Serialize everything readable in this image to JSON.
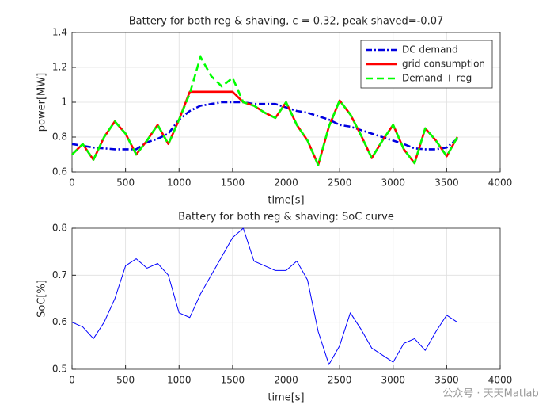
{
  "chart_data": [
    {
      "type": "line",
      "title": "Battery for both reg & shaving, c = 0.32, peak shaved=-0.07",
      "xlabel": "time[s]",
      "ylabel": "power[MW]",
      "x": [
        0,
        100,
        200,
        300,
        400,
        500,
        600,
        700,
        800,
        900,
        1000,
        1100,
        1200,
        1300,
        1400,
        1500,
        1600,
        1700,
        1800,
        1900,
        2000,
        2100,
        2200,
        2300,
        2400,
        2500,
        2600,
        2700,
        2800,
        2900,
        3000,
        3100,
        3200,
        3300,
        3400,
        3500,
        3600
      ],
      "series": [
        {
          "name": "DC demand",
          "color": "#0000e0",
          "dash": "dashdot",
          "values": [
            0.76,
            0.75,
            0.74,
            0.735,
            0.73,
            0.73,
            0.73,
            0.77,
            0.79,
            0.82,
            0.9,
            0.95,
            0.98,
            0.99,
            1.0,
            1.0,
            1.0,
            0.99,
            0.99,
            0.99,
            0.97,
            0.95,
            0.94,
            0.92,
            0.9,
            0.87,
            0.86,
            0.84,
            0.82,
            0.8,
            0.78,
            0.76,
            0.735,
            0.73,
            0.73,
            0.74,
            0.79
          ]
        },
        {
          "name": "grid consumption",
          "color": "#ff0000",
          "dash": "solid",
          "values": [
            0.7,
            0.76,
            0.67,
            0.8,
            0.89,
            0.82,
            0.7,
            0.78,
            0.87,
            0.76,
            0.9,
            1.06,
            1.06,
            1.06,
            1.06,
            1.06,
            1.0,
            0.98,
            0.94,
            0.91,
            1.0,
            0.87,
            0.78,
            0.64,
            0.86,
            1.01,
            0.93,
            0.81,
            0.68,
            0.78,
            0.87,
            0.73,
            0.65,
            0.85,
            0.78,
            0.69,
            0.8
          ]
        },
        {
          "name": "Demand + reg",
          "color": "#00ff00",
          "dash": "dashed",
          "values": [
            0.7,
            0.76,
            0.67,
            0.8,
            0.89,
            0.82,
            0.7,
            0.78,
            0.87,
            0.76,
            0.9,
            1.05,
            1.26,
            1.15,
            1.09,
            1.14,
            1.0,
            0.98,
            0.94,
            0.91,
            1.0,
            0.87,
            0.78,
            0.64,
            0.86,
            1.01,
            0.93,
            0.81,
            0.68,
            0.78,
            0.87,
            0.73,
            0.65,
            0.85,
            0.78,
            0.69,
            0.8
          ]
        }
      ],
      "xlim": [
        0,
        4000
      ],
      "xticks": [
        0,
        500,
        1000,
        1500,
        2000,
        2500,
        3000,
        3500,
        4000
      ],
      "ylim": [
        0.6,
        1.4
      ],
      "yticks": [
        0.6,
        0.8,
        1,
        1.2,
        1.4
      ],
      "grid": true,
      "legend": "northeast"
    },
    {
      "type": "line",
      "title": "Battery for both reg & shaving: SoC curve",
      "xlabel": "time[s]",
      "ylabel": "SoC[%]",
      "x": [
        0,
        100,
        200,
        300,
        400,
        500,
        600,
        700,
        800,
        900,
        1000,
        1100,
        1200,
        1300,
        1400,
        1500,
        1600,
        1700,
        1800,
        1900,
        2000,
        2100,
        2200,
        2300,
        2400,
        2500,
        2600,
        2700,
        2800,
        2900,
        3000,
        3100,
        3200,
        3300,
        3400,
        3500,
        3600
      ],
      "series": [
        {
          "name": "SoC",
          "color": "#0000ff",
          "dash": "solid",
          "values": [
            0.6,
            0.59,
            0.565,
            0.6,
            0.65,
            0.72,
            0.735,
            0.715,
            0.725,
            0.7,
            0.62,
            0.61,
            0.66,
            0.7,
            0.74,
            0.78,
            0.8,
            0.73,
            0.72,
            0.71,
            0.71,
            0.73,
            0.69,
            0.58,
            0.51,
            0.55,
            0.62,
            0.585,
            0.545,
            0.53,
            0.515,
            0.555,
            0.565,
            0.54,
            0.58,
            0.615,
            0.6
          ]
        }
      ],
      "xlim": [
        0,
        4000
      ],
      "xticks": [
        0,
        500,
        1000,
        1500,
        2000,
        2500,
        3000,
        3500,
        4000
      ],
      "ylim": [
        0.5,
        0.8
      ],
      "yticks": [
        0.5,
        0.6,
        0.7,
        0.8
      ],
      "grid": true
    }
  ],
  "watermark": "公众号 · 天天Matlab"
}
